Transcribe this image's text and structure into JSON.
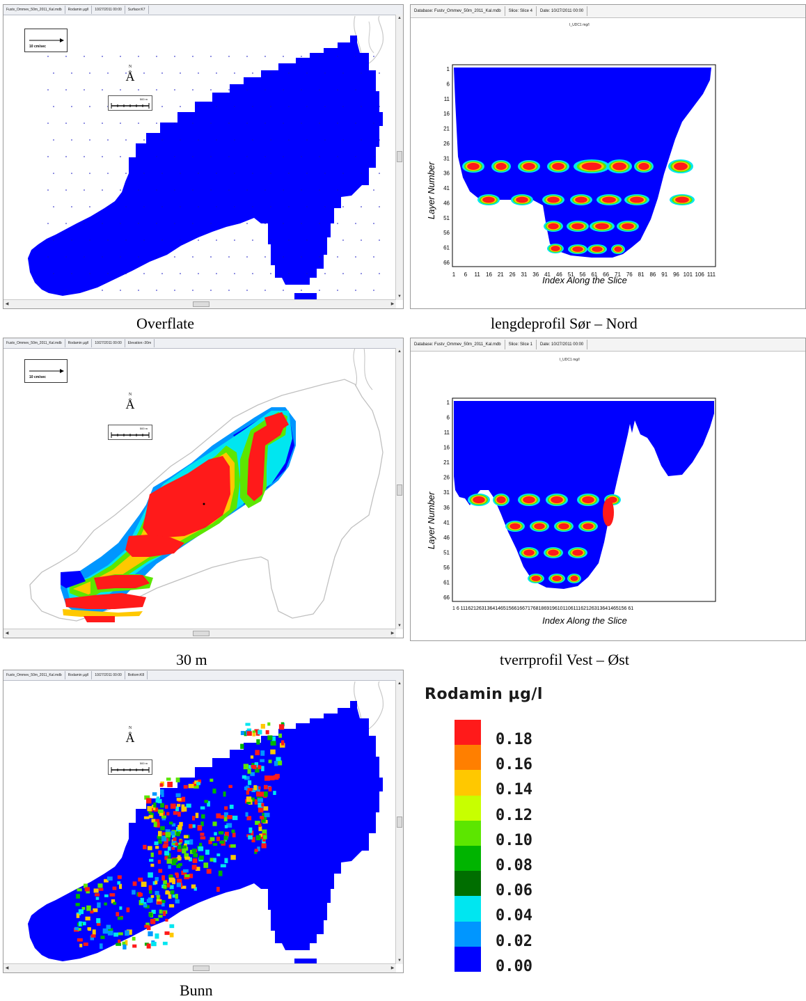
{
  "windows": {
    "surface": {
      "title_parts": [
        "Fustv_Ommev_50m_2011_Kal.mdb",
        "Rodamin µg/l",
        "10/27/2011 00:00",
        "Surface:K7"
      ],
      "vector_label": "10 cm/sec",
      "north_label": "N",
      "scale_label": "500 m",
      "caption": "Overflate"
    },
    "depth30": {
      "title_parts": [
        "Fustv_Ommev_50m_2011_Kal.mdb",
        "Rodamin µg/l",
        "10/27/2011 00:00",
        "Elevation:-30m"
      ],
      "vector_label": "10 cm/sec",
      "north_label": "N",
      "scale_label": "500 m",
      "caption": "30 m"
    },
    "bottom": {
      "title_parts": [
        "Fustv_Ommev_50m_2011_Kal.mdb",
        "Rodamin µg/l",
        "10/27/2011 00:00",
        "Bottom:K8"
      ],
      "north_label": "N",
      "scale_label": "500 m",
      "caption": "Bunn"
    },
    "long_profile": {
      "title_parts": [
        "Database: Fustv_Ommev_50m_2011_Kal.mdb",
        "Slice: Slice 4",
        "Date: 10/27/2011 00:00"
      ],
      "plot_title": "I_UDC1 mg/l",
      "ylabel": "Layer Number",
      "xlabel": "Index Along the Slice",
      "yticks": [
        "1",
        "6",
        "11",
        "16",
        "21",
        "26",
        "31",
        "36",
        "41",
        "46",
        "51",
        "56",
        "61",
        "66"
      ],
      "xticks": [
        "1",
        "6",
        "11",
        "16",
        "21",
        "26",
        "31",
        "36",
        "41",
        "46",
        "51",
        "56",
        "61",
        "66",
        "71",
        "76",
        "81",
        "86",
        "91",
        "96",
        "101",
        "106",
        "111"
      ],
      "caption": "lengdeprofil Sør – Nord"
    },
    "cross_profile": {
      "title_parts": [
        "Database: Fustv_Ommev_50m_2011_Kal.mdb",
        "Slice: Slice 1",
        "Date: 10/27/2011 00:00"
      ],
      "plot_title": "I_UDC1 mg/l",
      "ylabel": "Layer Number",
      "xlabel": "Index Along the Slice",
      "yticks": [
        "1",
        "6",
        "11",
        "16",
        "21",
        "26",
        "31",
        "36",
        "41",
        "46",
        "51",
        "56",
        "61",
        "66"
      ],
      "xticks_text": "1 6 11162126313641465156616671768186919610110611162126313641465156 61",
      "caption": "tverrprofil Vest – Øst"
    }
  },
  "legend": {
    "title": "Rodamin µg/l",
    "items": [
      {
        "label": "0.18",
        "color": "#ff1a1a"
      },
      {
        "label": "0.16",
        "color": "#ff7f00"
      },
      {
        "label": "0.14",
        "color": "#ffc800"
      },
      {
        "label": "0.12",
        "color": "#c8ff00"
      },
      {
        "label": "0.10",
        "color": "#5ce600"
      },
      {
        "label": "0.08",
        "color": "#00b400"
      },
      {
        "label": "0.06",
        "color": "#006e00"
      },
      {
        "label": "0.04",
        "color": "#00e6f0"
      },
      {
        "label": "0.02",
        "color": "#0096ff"
      },
      {
        "label": "0.00",
        "color": "#0000ff"
      }
    ]
  }
}
